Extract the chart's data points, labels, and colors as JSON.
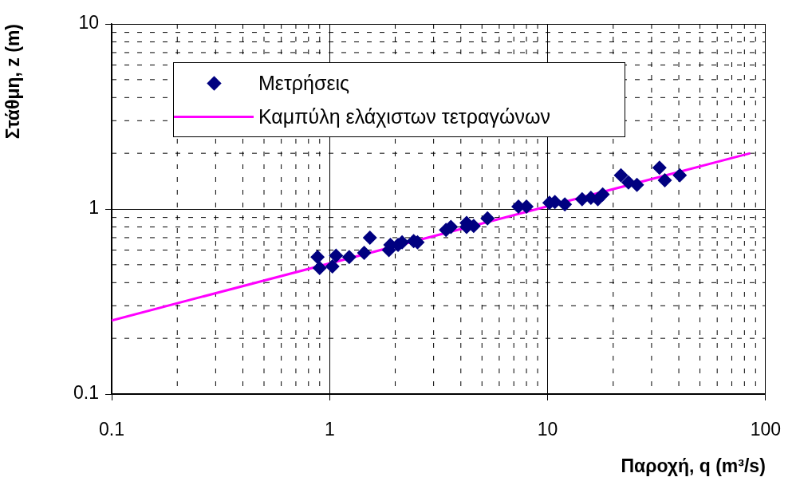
{
  "chart_data": {
    "type": "scatter",
    "xlabel": "Παροχή, q (m³/s)",
    "ylabel": "Στάθμη, z (m)",
    "log": "xy",
    "grid": true,
    "legend": "top left",
    "marker": "diamond",
    "xlim": [
      0.1,
      100
    ],
    "xticks": [
      0.1,
      1,
      10,
      100
    ],
    "ylim": [
      0.1,
      10
    ],
    "yticks": [
      0.1,
      1,
      10
    ],
    "series": [
      {
        "name": "Μετρήσεις",
        "type": "scatter",
        "color": "#000080",
        "x": [
          0.88,
          0.9,
          1.03,
          1.07,
          1.23,
          1.44,
          1.53,
          1.87,
          1.9,
          2.06,
          2.15,
          2.43,
          2.53,
          3.42,
          3.6,
          4.25,
          4.25,
          4.58,
          5.3,
          7.35,
          8.0,
          10.2,
          10.8,
          12.0,
          14.4,
          15.8,
          17.0,
          17.9,
          21.7,
          23.5,
          25.7,
          32.6,
          34.5,
          40.4
        ],
        "values": [
          0.55,
          0.48,
          0.49,
          0.56,
          0.55,
          0.58,
          0.7,
          0.6,
          0.64,
          0.64,
          0.66,
          0.67,
          0.66,
          0.77,
          0.8,
          0.84,
          0.8,
          0.81,
          0.89,
          1.03,
          1.03,
          1.08,
          1.09,
          1.06,
          1.13,
          1.15,
          1.13,
          1.2,
          1.52,
          1.39,
          1.35,
          1.67,
          1.43,
          1.52
        ]
      },
      {
        "name": "Καμπύλη ελάχιστων τετραγώνων",
        "type": "line",
        "color": "#ff00ff",
        "marker": "none",
        "line_style": "solid",
        "x": [
          0.1,
          85
        ],
        "values": [
          0.25,
          2.0
        ]
      }
    ]
  }
}
